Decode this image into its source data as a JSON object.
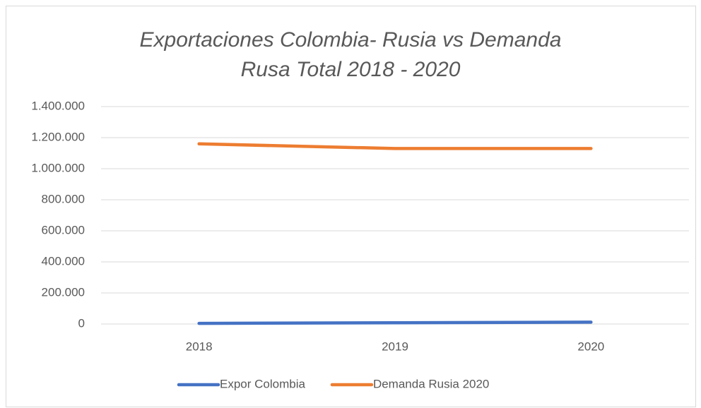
{
  "chart_data": {
    "type": "line",
    "title": "Exportaciones Colombia- Rusia vs Demanda Rusa Total 2018 - 2020",
    "categories": [
      "2018",
      "2019",
      "2020"
    ],
    "series": [
      {
        "name": "Expor Colombia",
        "color": "#4472c4",
        "values": [
          4000,
          8000,
          12000
        ]
      },
      {
        "name": "Demanda Rusia 2020",
        "color": "#ed7d31",
        "values": [
          1160000,
          1130000,
          1130000
        ]
      }
    ],
    "ylim": [
      0,
      1400000
    ],
    "yticks": [
      0,
      {
        "value": 200000,
        "label": "200.000"
      },
      {
        "value": 400000,
        "label": "400.000"
      },
      {
        "value": 600000,
        "label": "600.000"
      },
      {
        "value": 800000,
        "label": "800.000"
      },
      {
        "value": 1000000,
        "label": "1.000.000"
      },
      {
        "value": 1200000,
        "label": "1.200.000"
      },
      {
        "value": 1400000,
        "label": "1.400.000"
      }
    ],
    "grid": true,
    "legend": "bottom"
  }
}
